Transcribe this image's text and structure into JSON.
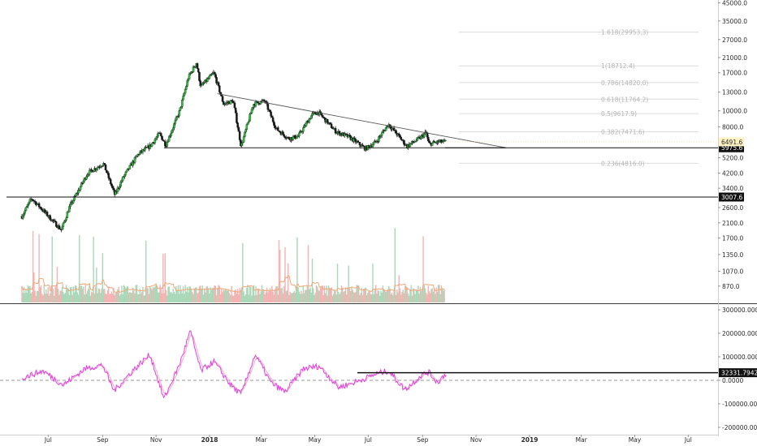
{
  "chart_data": [
    {
      "type": "candlestick",
      "title": "",
      "price_scale": "log",
      "ylim": [
        640,
        47000
      ],
      "y_ticks": [
        "870.0",
        "1070.0",
        "1350.0",
        "1700.0",
        "2100.0",
        "2600.0",
        "3400.0",
        "4200.0",
        "5200.0",
        "6491.6",
        "8000.0",
        "10000.0",
        "13000.0",
        "17000.0",
        "21000.0",
        "27000.0",
        "35000.0",
        "45000.0"
      ],
      "y_tick_values": [
        870,
        1070,
        1350,
        1700,
        2100,
        2600,
        3400,
        4200,
        5200,
        6491.6,
        8000,
        10000,
        13000,
        17000,
        21000,
        27000,
        35000,
        45000
      ],
      "x_ticks": [
        "Jul",
        "Sep",
        "Nov",
        "2018",
        "Mar",
        "May",
        "Jul",
        "Sep",
        "Nov",
        "2019",
        "Mar",
        "May",
        "Jul"
      ],
      "x_tick_values": [
        "2017-07-01",
        "2017-09-01",
        "2017-11-01",
        "2018-01-01",
        "2018-03-01",
        "2018-05-01",
        "2018-07-01",
        "2018-09-01",
        "2018-11-01",
        "2019-01-01",
        "2019-03-01",
        "2019-05-01",
        "2019-07-01"
      ],
      "price_path": [
        {
          "date": "2017-06-01",
          "price": 2300
        },
        {
          "date": "2017-06-12",
          "price": 2950
        },
        {
          "date": "2017-06-25",
          "price": 2500
        },
        {
          "date": "2017-07-16",
          "price": 1900
        },
        {
          "date": "2017-07-25",
          "price": 2600
        },
        {
          "date": "2017-08-15",
          "price": 4200
        },
        {
          "date": "2017-09-02",
          "price": 4800
        },
        {
          "date": "2017-09-15",
          "price": 3100
        },
        {
          "date": "2017-09-25",
          "price": 4000
        },
        {
          "date": "2017-10-12",
          "price": 5500
        },
        {
          "date": "2017-10-25",
          "price": 6100
        },
        {
          "date": "2017-11-05",
          "price": 7300
        },
        {
          "date": "2017-11-12",
          "price": 6200
        },
        {
          "date": "2017-11-28",
          "price": 10000
        },
        {
          "date": "2017-12-08",
          "price": 16000
        },
        {
          "date": "2017-12-17",
          "price": 19500
        },
        {
          "date": "2017-12-22",
          "price": 14000
        },
        {
          "date": "2018-01-06",
          "price": 17000
        },
        {
          "date": "2018-01-17",
          "price": 11000
        },
        {
          "date": "2018-01-28",
          "price": 11500
        },
        {
          "date": "2018-02-06",
          "price": 6100
        },
        {
          "date": "2018-02-20",
          "price": 11000
        },
        {
          "date": "2018-03-05",
          "price": 11500
        },
        {
          "date": "2018-03-18",
          "price": 7800
        },
        {
          "date": "2018-04-01",
          "price": 6800
        },
        {
          "date": "2018-04-12",
          "price": 7000
        },
        {
          "date": "2018-04-28",
          "price": 9500
        },
        {
          "date": "2018-05-05",
          "price": 9800
        },
        {
          "date": "2018-05-25",
          "price": 7500
        },
        {
          "date": "2018-06-10",
          "price": 6900
        },
        {
          "date": "2018-06-28",
          "price": 5900
        },
        {
          "date": "2018-07-10",
          "price": 6500
        },
        {
          "date": "2018-07-24",
          "price": 8300
        },
        {
          "date": "2018-08-05",
          "price": 7000
        },
        {
          "date": "2018-08-14",
          "price": 6100
        },
        {
          "date": "2018-08-30",
          "price": 6900
        },
        {
          "date": "2018-09-05",
          "price": 7400
        },
        {
          "date": "2018-09-08",
          "price": 6300
        },
        {
          "date": "2018-09-20",
          "price": 6500
        },
        {
          "date": "2018-09-28",
          "price": 6491.6
        }
      ],
      "last_price": "6491.6",
      "horizontal_levels": [
        {
          "price": 5975.6,
          "label": "5975.6"
        },
        {
          "price": 3007.6,
          "label": "3007.6"
        }
      ],
      "trendline": {
        "start": {
          "date": "2018-01-10",
          "price": 12700
        },
        "end": {
          "date": "2018-12-05",
          "price": 5975.6
        }
      },
      "support_segment": {
        "start_date": "2017-11-10",
        "end_date": "2018-12-05",
        "price": 5975.6
      },
      "fib_levels": [
        {
          "label": "0.236(4816.0)",
          "price": 4816.0
        },
        {
          "label": "0.382(7471.6)",
          "price": 7471.6
        },
        {
          "label": "0.5(9617.9)",
          "price": 9617.9
        },
        {
          "label": "0.618(11764.2)",
          "price": 11764.2
        },
        {
          "label": "0.786(14820.0)",
          "price": 14820.0
        },
        {
          "label": "1(18712.4)",
          "price": 18712.4
        },
        {
          "label": "1.618(29953.3)",
          "price": 29953.3
        }
      ],
      "volume_ma_present": true
    },
    {
      "type": "line",
      "title": "",
      "ylim": [
        -230000,
        330000
      ],
      "y_ticks": [
        "300000.0000",
        "200000.0000",
        "100000.0000",
        "0.0000",
        "-100000.0000",
        "-200000.0000"
      ],
      "y_tick_values": [
        300000,
        200000,
        100000,
        0,
        -100000,
        -200000
      ],
      "last_value": "32331.7942",
      "signal_level": 32331.7942,
      "zero_line": 0,
      "series": [
        {
          "color": "#e040e0",
          "values": [
            {
              "date": "2017-06-01",
              "value": 10000
            },
            {
              "date": "2017-06-25",
              "value": 40000
            },
            {
              "date": "2017-07-18",
              "value": -20000
            },
            {
              "date": "2017-08-12",
              "value": 50000
            },
            {
              "date": "2017-09-01",
              "value": 65000
            },
            {
              "date": "2017-09-14",
              "value": -45000
            },
            {
              "date": "2017-10-05",
              "value": 40000
            },
            {
              "date": "2017-10-25",
              "value": 110000
            },
            {
              "date": "2017-11-10",
              "value": -80000
            },
            {
              "date": "2017-11-28",
              "value": 70000
            },
            {
              "date": "2017-12-10",
              "value": 210000
            },
            {
              "date": "2017-12-22",
              "value": 40000
            },
            {
              "date": "2018-01-06",
              "value": 80000
            },
            {
              "date": "2018-01-25",
              "value": -20000
            },
            {
              "date": "2018-02-06",
              "value": -60000
            },
            {
              "date": "2018-02-22",
              "value": 110000
            },
            {
              "date": "2018-03-12",
              "value": -10000
            },
            {
              "date": "2018-03-28",
              "value": -50000
            },
            {
              "date": "2018-04-18",
              "value": 50000
            },
            {
              "date": "2018-05-06",
              "value": 60000
            },
            {
              "date": "2018-05-28",
              "value": -30000
            },
            {
              "date": "2018-06-18",
              "value": -5000
            },
            {
              "date": "2018-07-12",
              "value": 30000
            },
            {
              "date": "2018-07-24",
              "value": 40000
            },
            {
              "date": "2018-08-12",
              "value": -40000
            },
            {
              "date": "2018-08-30",
              "value": 20000
            },
            {
              "date": "2018-09-08",
              "value": 35000
            },
            {
              "date": "2018-09-18",
              "value": -10000
            },
            {
              "date": "2018-09-28",
              "value": 32000
            }
          ]
        }
      ]
    }
  ]
}
